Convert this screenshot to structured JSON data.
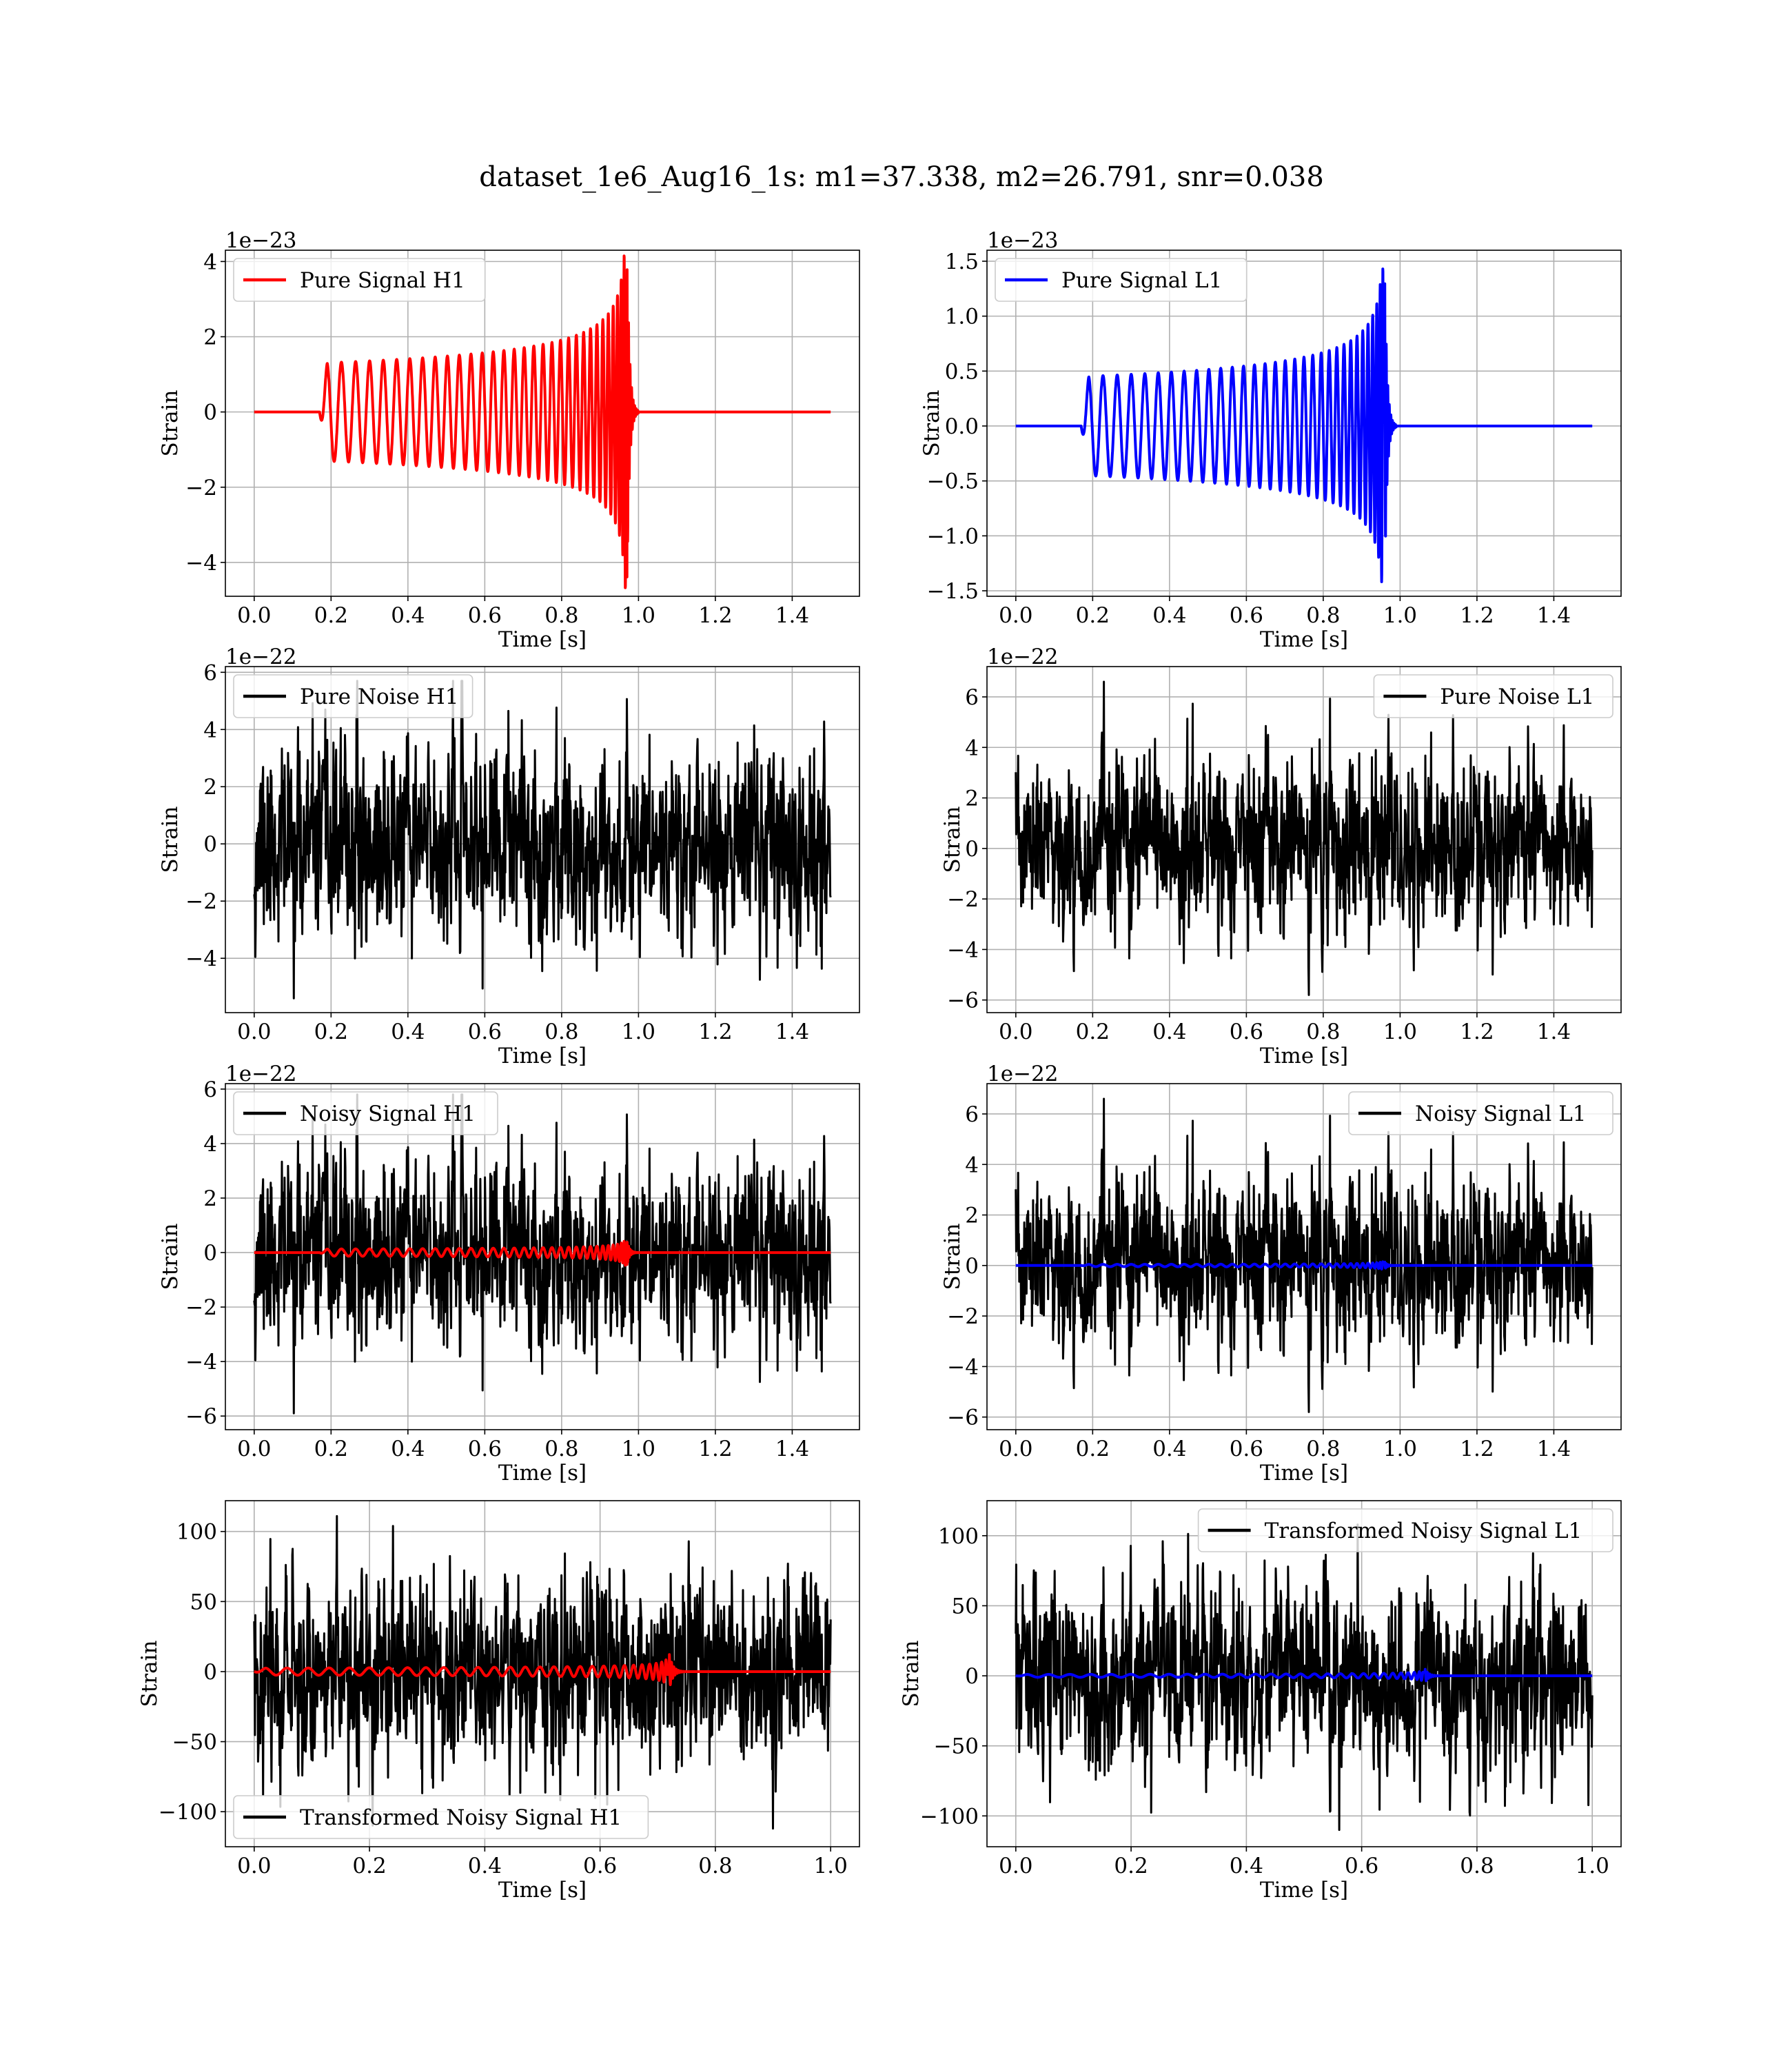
{
  "figure": {
    "title": "dataset_1e6_Aug16_1s: m1=37.338, m2=26.791, snr=0.038"
  },
  "chart_data": [
    {
      "type": "line",
      "legend": "Pure Signal H1",
      "legend_position": "upper left",
      "color": "#ff0000",
      "xlabel": "Time [s]",
      "ylabel": "Strain",
      "offset_text": "1e−23",
      "xlim": [
        -0.075,
        1.575
      ],
      "ylim": [
        -4.9,
        4.3
      ],
      "xticks": [
        0.0,
        0.2,
        0.4,
        0.6,
        0.8,
        1.0,
        1.2,
        1.4
      ],
      "xtick_labels": [
        "0.0",
        "0.2",
        "0.4",
        "0.6",
        "0.8",
        "1.0",
        "1.2",
        "1.4"
      ],
      "yticks": [
        -4,
        -2,
        0,
        2,
        4
      ],
      "ytick_labels": [
        "−4",
        "−2",
        "0",
        "2",
        "4"
      ],
      "grid": true,
      "series": [
        {
          "name": "Pure Signal H1",
          "kind": "chirp",
          "color": "#ff0000",
          "x_start": 0.0,
          "x_end": 1.5,
          "onset": 0.17,
          "merger": 0.97,
          "early_amplitude": 1.3,
          "peak_amplitude": 4.8,
          "lw": 4
        }
      ]
    },
    {
      "type": "line",
      "legend": "Pure Signal L1",
      "legend_position": "upper left",
      "color": "#0000ff",
      "xlabel": "Time [s]",
      "ylabel": "Strain",
      "offset_text": "1e−23",
      "xlim": [
        -0.075,
        1.575
      ],
      "ylim": [
        -1.55,
        1.6
      ],
      "xticks": [
        0.0,
        0.2,
        0.4,
        0.6,
        0.8,
        1.0,
        1.2,
        1.4
      ],
      "xtick_labels": [
        "0.0",
        "0.2",
        "0.4",
        "0.6",
        "0.8",
        "1.0",
        "1.2",
        "1.4"
      ],
      "yticks": [
        -1.5,
        -1.0,
        -0.5,
        0.0,
        0.5,
        1.0,
        1.5
      ],
      "ytick_labels": [
        "−1.5",
        "−1.0",
        "−0.5",
        "0.0",
        "0.5",
        "1.0",
        "1.5"
      ],
      "grid": true,
      "series": [
        {
          "name": "Pure Signal L1",
          "kind": "chirp",
          "color": "#0000ff",
          "x_start": 0.0,
          "x_end": 1.5,
          "onset": 0.17,
          "merger": 0.96,
          "early_amplitude": 0.45,
          "peak_amplitude": 1.45,
          "lw": 4
        }
      ]
    },
    {
      "type": "line",
      "legend": "Pure Noise H1",
      "legend_position": "upper left",
      "color": "#000000",
      "xlabel": "Time [s]",
      "ylabel": "Strain",
      "offset_text": "1e−22",
      "xlim": [
        -0.075,
        1.575
      ],
      "ylim": [
        -5.9,
        6.2
      ],
      "xticks": [
        0.0,
        0.2,
        0.4,
        0.6,
        0.8,
        1.0,
        1.2,
        1.4
      ],
      "xtick_labels": [
        "0.0",
        "0.2",
        "0.4",
        "0.6",
        "0.8",
        "1.0",
        "1.2",
        "1.4"
      ],
      "yticks": [
        -4,
        -2,
        0,
        2,
        4,
        6
      ],
      "ytick_labels": [
        "−4",
        "−2",
        "0",
        "2",
        "4",
        "6"
      ],
      "grid": true,
      "series": [
        {
          "name": "Pure Noise H1",
          "kind": "noise",
          "color": "#000000",
          "x_start": 0.0,
          "x_end": 1.5,
          "sigma": 1.7,
          "min": -5.4,
          "max": 5.7,
          "seed": 11,
          "lw": 3
        }
      ]
    },
    {
      "type": "line",
      "legend": "Pure Noise L1",
      "legend_position": "upper right",
      "color": "#000000",
      "xlabel": "Time [s]",
      "ylabel": "Strain",
      "offset_text": "1e−22",
      "xlim": [
        -0.075,
        1.575
      ],
      "ylim": [
        -6.5,
        7.2
      ],
      "xticks": [
        0.0,
        0.2,
        0.4,
        0.6,
        0.8,
        1.0,
        1.2,
        1.4
      ],
      "xtick_labels": [
        "0.0",
        "0.2",
        "0.4",
        "0.6",
        "0.8",
        "1.0",
        "1.2",
        "1.4"
      ],
      "yticks": [
        -6,
        -4,
        -2,
        0,
        2,
        4,
        6
      ],
      "ytick_labels": [
        "−6",
        "−4",
        "−2",
        "0",
        "2",
        "4",
        "6"
      ],
      "grid": true,
      "series": [
        {
          "name": "Pure Noise L1",
          "kind": "noise",
          "color": "#000000",
          "x_start": 0.0,
          "x_end": 1.5,
          "sigma": 1.7,
          "min": -5.8,
          "max": 6.6,
          "seed": 23,
          "lw": 3
        }
      ]
    },
    {
      "type": "line",
      "legend": "Noisy Signal H1",
      "legend_position": "upper left",
      "color": "#000000",
      "xlabel": "Time [s]",
      "ylabel": "Strain",
      "offset_text": "1e−22",
      "xlim": [
        -0.075,
        1.575
      ],
      "ylim": [
        -6.5,
        6.2
      ],
      "xticks": [
        0.0,
        0.2,
        0.4,
        0.6,
        0.8,
        1.0,
        1.2,
        1.4
      ],
      "xtick_labels": [
        "0.0",
        "0.2",
        "0.4",
        "0.6",
        "0.8",
        "1.0",
        "1.2",
        "1.4"
      ],
      "yticks": [
        -6,
        -4,
        -2,
        0,
        2,
        4,
        6
      ],
      "ytick_labels": [
        "−6",
        "−4",
        "−2",
        "0",
        "2",
        "4",
        "6"
      ],
      "grid": true,
      "series": [
        {
          "name": "Noisy Signal H1",
          "kind": "noise",
          "color": "#000000",
          "x_start": 0.0,
          "x_end": 1.5,
          "sigma": 1.7,
          "min": -5.9,
          "max": 5.8,
          "seed": 11,
          "lw": 3
        },
        {
          "kind": "chirp",
          "color": "#ff0000",
          "x_start": 0.0,
          "x_end": 1.5,
          "onset": 0.17,
          "merger": 0.97,
          "early_amplitude": 0.13,
          "peak_amplitude": 0.48,
          "lw": 4
        }
      ]
    },
    {
      "type": "line",
      "legend": "Noisy Signal L1",
      "legend_position": "upper right",
      "color": "#000000",
      "xlabel": "Time [s]",
      "ylabel": "Strain",
      "offset_text": "1e−22",
      "xlim": [
        -0.075,
        1.575
      ],
      "ylim": [
        -6.5,
        7.2
      ],
      "xticks": [
        0.0,
        0.2,
        0.4,
        0.6,
        0.8,
        1.0,
        1.2,
        1.4
      ],
      "xtick_labels": [
        "0.0",
        "0.2",
        "0.4",
        "0.6",
        "0.8",
        "1.0",
        "1.2",
        "1.4"
      ],
      "yticks": [
        -6,
        -4,
        -2,
        0,
        2,
        4,
        6
      ],
      "ytick_labels": [
        "−6",
        "−4",
        "−2",
        "0",
        "2",
        "4",
        "6"
      ],
      "grid": true,
      "series": [
        {
          "name": "Noisy Signal L1",
          "kind": "noise",
          "color": "#000000",
          "x_start": 0.0,
          "x_end": 1.5,
          "sigma": 1.7,
          "min": -5.8,
          "max": 6.6,
          "seed": 23,
          "lw": 3
        },
        {
          "kind": "chirp",
          "color": "#0000ff",
          "x_start": 0.0,
          "x_end": 1.5,
          "onset": 0.17,
          "merger": 0.96,
          "early_amplitude": 0.045,
          "peak_amplitude": 0.15,
          "lw": 4
        }
      ]
    },
    {
      "type": "line",
      "legend": "Transformed Noisy Signal H1",
      "legend_position": "lower left",
      "color": "#000000",
      "xlabel": "Time [s]",
      "ylabel": "Strain",
      "offset_text": "",
      "xlim": [
        -0.05,
        1.05
      ],
      "ylim": [
        -125,
        122
      ],
      "xticks": [
        0.0,
        0.2,
        0.4,
        0.6,
        0.8,
        1.0
      ],
      "xtick_labels": [
        "0.0",
        "0.2",
        "0.4",
        "0.6",
        "0.8",
        "1.0"
      ],
      "yticks": [
        -100,
        -50,
        0,
        50,
        100
      ],
      "ytick_labels": [
        "−100",
        "−50",
        "0",
        "50",
        "100"
      ],
      "grid": true,
      "series": [
        {
          "name": "Transformed Noisy Signal H1",
          "kind": "noise",
          "color": "#000000",
          "x_start": 0.0,
          "x_end": 1.0,
          "sigma": 33,
          "min": -112,
          "max": 111,
          "seed": 37,
          "lw": 3
        },
        {
          "kind": "chirp",
          "color": "#ff0000",
          "x_start": 0.0,
          "x_end": 1.0,
          "onset": 0.0,
          "merger": 0.72,
          "early_amplitude": 2.5,
          "peak_amplitude": 13,
          "lw": 4
        }
      ]
    },
    {
      "type": "line",
      "legend": "Transformed Noisy Signal L1",
      "legend_position": "upper right",
      "color": "#000000",
      "xlabel": "Time [s]",
      "ylabel": "Strain",
      "offset_text": "",
      "xlim": [
        -0.05,
        1.05
      ],
      "ylim": [
        -122,
        125
      ],
      "xticks": [
        0.0,
        0.2,
        0.4,
        0.6,
        0.8,
        1.0
      ],
      "xtick_labels": [
        "0.0",
        "0.2",
        "0.4",
        "0.6",
        "0.8",
        "1.0"
      ],
      "yticks": [
        -100,
        -50,
        0,
        50,
        100
      ],
      "ytick_labels": [
        "−100",
        "−50",
        "0",
        "50",
        "100"
      ],
      "grid": true,
      "series": [
        {
          "name": "Transformed Noisy Signal L1",
          "kind": "noise",
          "color": "#000000",
          "x_start": 0.0,
          "x_end": 1.0,
          "sigma": 33,
          "min": -110,
          "max": 108,
          "seed": 53,
          "lw": 3
        },
        {
          "kind": "chirp",
          "color": "#0000ff",
          "x_start": 0.0,
          "x_end": 1.0,
          "onset": 0.0,
          "merger": 0.71,
          "early_amplitude": 1.0,
          "peak_amplitude": 5,
          "lw": 4
        }
      ]
    }
  ]
}
